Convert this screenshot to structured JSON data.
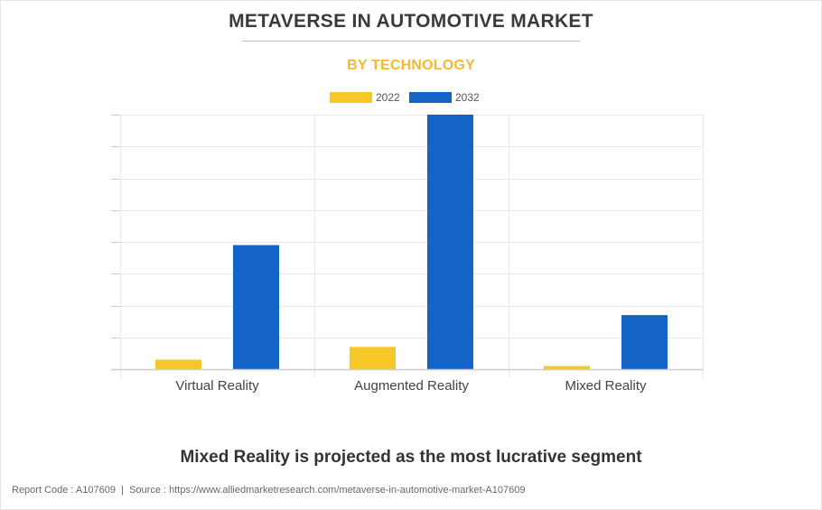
{
  "colors": {
    "accent": "#f5b82e",
    "series_2022": "#f5c828",
    "series_2032": "#1464c8",
    "grid": "#e8e8e8",
    "axis": "#cccccc"
  },
  "title": "METAVERSE IN AUTOMOTIVE MARKET",
  "subtitle": "BY TECHNOLOGY",
  "headline": "Mixed Reality is projected as the most lucrative segment",
  "footer": {
    "report_code": "Report Code : A107609",
    "separator": "|",
    "source": "Source : https://www.alliedmarketresearch.com/metaverse-in-automotive-market-A107609"
  },
  "chart_data": {
    "type": "bar",
    "title": "METAVERSE IN AUTOMOTIVE MARKET",
    "subtitle": "BY TECHNOLOGY",
    "categories": [
      "Virtual Reality",
      "Augmented Reality",
      "Mixed Reality"
    ],
    "series": [
      {
        "name": "2022",
        "color": "#f5c828",
        "values": [
          0.3,
          0.7,
          0.1
        ]
      },
      {
        "name": "2032",
        "color": "#1464c8",
        "values": [
          3.9,
          8.0,
          1.7
        ]
      }
    ],
    "ylim": [
      0,
      8
    ],
    "y_tick_count": 8,
    "y_tick_labels_shown": false,
    "grid": true,
    "legend": "top-center"
  }
}
